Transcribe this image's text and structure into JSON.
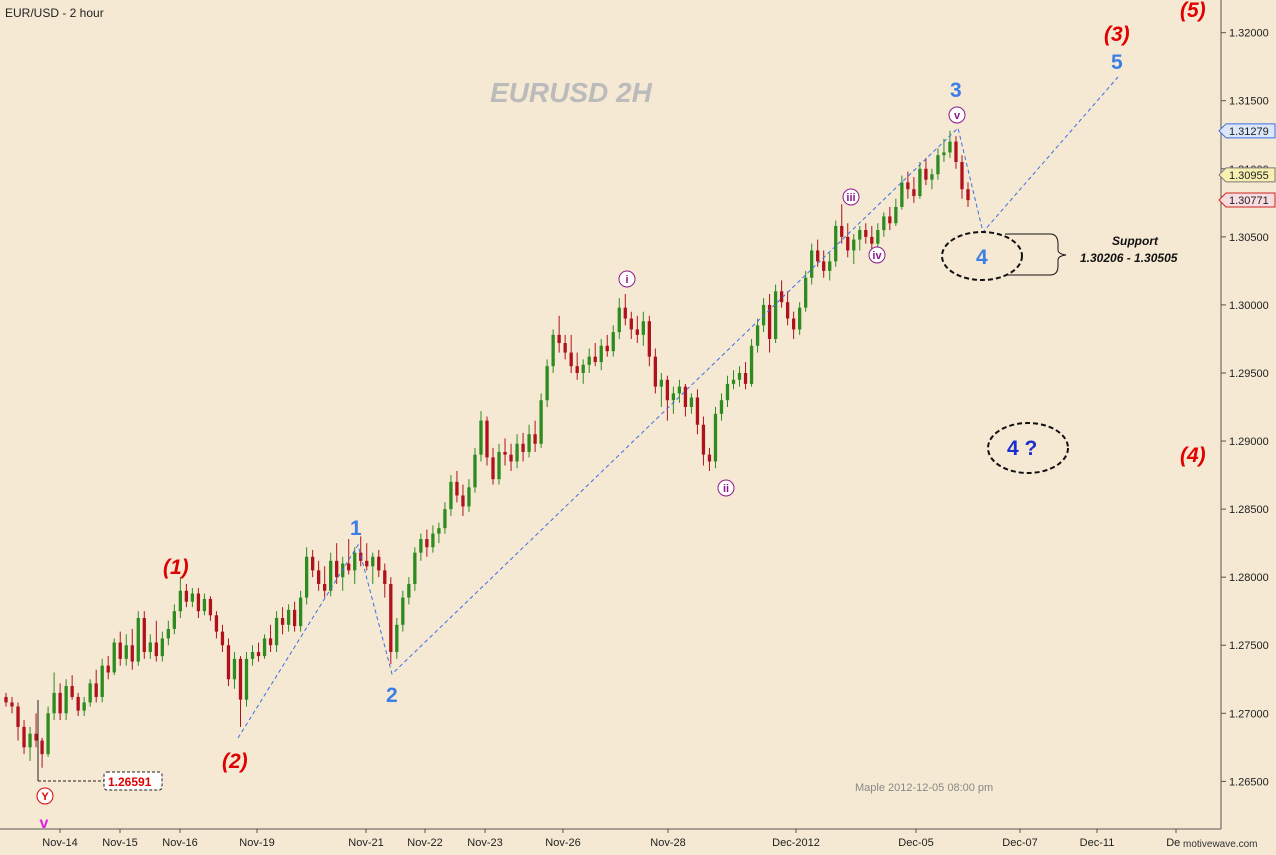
{
  "title": "EUR/USD - 2 hour",
  "watermark": "EURUSD  2H",
  "footer": "Maple  2012-12-05  08:00 pm",
  "signature": "motivewave.com",
  "colors": {
    "background": "#f5e9d3",
    "up_candle": "#2e8b1f",
    "down_candle": "#b0121b",
    "wave_red": "#e00000",
    "wave_blue": "#3d7ee6",
    "wave_purple": "#8b1a8b",
    "trendline": "#3d6fe6"
  },
  "chart_data": {
    "type": "candlestick",
    "ylim": [
      1.2615,
      1.3224
    ],
    "y_ticks": [
      "1.32000",
      "1.31500",
      "1.31000",
      "1.30500",
      "1.30000",
      "1.29500",
      "1.29000",
      "1.28500",
      "1.28000",
      "1.27500",
      "1.27000",
      "1.26500"
    ],
    "x_ticks": [
      "Nov-14",
      "Nov-15",
      "Nov-16",
      "Nov-19",
      "Nov-21",
      "Nov-22",
      "Nov-23",
      "Nov-26",
      "Nov-28",
      "Dec-2012",
      "Dec-05",
      "Dec-07",
      "Dec-11",
      "Dec"
    ],
    "price_tags": [
      {
        "label": "1.31279",
        "value": 1.31279,
        "style": "blue"
      },
      {
        "label": "1.30955",
        "value": 1.30955,
        "style": "yellow"
      },
      {
        "label": "1.30771",
        "value": 1.30771,
        "style": "red"
      }
    ],
    "low_marker": {
      "label": "1.26591",
      "value": 1.26591
    },
    "candles": [
      [
        1.2712,
        1.2715,
        1.2705,
        1.2708
      ],
      [
        1.2708,
        1.2712,
        1.27,
        1.2705
      ],
      [
        1.2705,
        1.2708,
        1.268,
        1.269
      ],
      [
        1.269,
        1.2695,
        1.267,
        1.2675
      ],
      [
        1.2675,
        1.269,
        1.2665,
        1.2685
      ],
      [
        1.2685,
        1.27,
        1.2675,
        1.268
      ],
      [
        1.268,
        1.2682,
        1.266,
        1.267
      ],
      [
        1.267,
        1.2705,
        1.2668,
        1.27
      ],
      [
        1.27,
        1.273,
        1.2695,
        1.2715
      ],
      [
        1.2715,
        1.2722,
        1.2695,
        1.27
      ],
      [
        1.27,
        1.2725,
        1.2695,
        1.272
      ],
      [
        1.272,
        1.2728,
        1.271,
        1.2712
      ],
      [
        1.2712,
        1.2715,
        1.2698,
        1.2702
      ],
      [
        1.2702,
        1.2712,
        1.2698,
        1.2708
      ],
      [
        1.2708,
        1.2725,
        1.2705,
        1.2722
      ],
      [
        1.2722,
        1.2732,
        1.2708,
        1.2712
      ],
      [
        1.2712,
        1.274,
        1.2708,
        1.2735
      ],
      [
        1.2735,
        1.2742,
        1.2725,
        1.273
      ],
      [
        1.273,
        1.2755,
        1.2728,
        1.2752
      ],
      [
        1.2752,
        1.276,
        1.2735,
        1.274
      ],
      [
        1.274,
        1.2758,
        1.2735,
        1.275
      ],
      [
        1.275,
        1.2762,
        1.2732,
        1.2738
      ],
      [
        1.2738,
        1.2775,
        1.2735,
        1.277
      ],
      [
        1.277,
        1.2775,
        1.274,
        1.2745
      ],
      [
        1.2745,
        1.2758,
        1.274,
        1.2752
      ],
      [
        1.2752,
        1.2768,
        1.2738,
        1.2742
      ],
      [
        1.2742,
        1.276,
        1.2738,
        1.2755
      ],
      [
        1.2755,
        1.2768,
        1.275,
        1.2762
      ],
      [
        1.2762,
        1.278,
        1.2758,
        1.2775
      ],
      [
        1.2775,
        1.28,
        1.277,
        1.279
      ],
      [
        1.279,
        1.2795,
        1.2778,
        1.2782
      ],
      [
        1.2782,
        1.2792,
        1.2778,
        1.2788
      ],
      [
        1.2788,
        1.2792,
        1.277,
        1.2775
      ],
      [
        1.2775,
        1.2788,
        1.2772,
        1.2784
      ],
      [
        1.2784,
        1.2786,
        1.2768,
        1.2772
      ],
      [
        1.2772,
        1.2775,
        1.2755,
        1.276
      ],
      [
        1.276,
        1.2765,
        1.2745,
        1.275
      ],
      [
        1.275,
        1.2755,
        1.272,
        1.2725
      ],
      [
        1.2725,
        1.2745,
        1.2718,
        1.274
      ],
      [
        1.274,
        1.2742,
        1.269,
        1.271
      ],
      [
        1.271,
        1.2745,
        1.2705,
        1.274
      ],
      [
        1.274,
        1.275,
        1.2735,
        1.2745
      ],
      [
        1.2745,
        1.2752,
        1.2738,
        1.2742
      ],
      [
        1.2742,
        1.2758,
        1.274,
        1.2755
      ],
      [
        1.2755,
        1.2765,
        1.2745,
        1.275
      ],
      [
        1.275,
        1.2775,
        1.2745,
        1.277
      ],
      [
        1.277,
        1.2778,
        1.2758,
        1.2765
      ],
      [
        1.2765,
        1.278,
        1.276,
        1.2776
      ],
      [
        1.2776,
        1.2782,
        1.276,
        1.2764
      ],
      [
        1.2764,
        1.279,
        1.276,
        1.2785
      ],
      [
        1.2785,
        1.2822,
        1.278,
        1.2815
      ],
      [
        1.2815,
        1.282,
        1.28,
        1.2805
      ],
      [
        1.2805,
        1.2812,
        1.279,
        1.2795
      ],
      [
        1.2795,
        1.2808,
        1.2785,
        1.279
      ],
      [
        1.279,
        1.2818,
        1.2786,
        1.2812
      ],
      [
        1.2812,
        1.2825,
        1.2795,
        1.28
      ],
      [
        1.28,
        1.2815,
        1.279,
        1.281
      ],
      [
        1.281,
        1.2828,
        1.2802,
        1.2805
      ],
      [
        1.2805,
        1.2822,
        1.2795,
        1.2818
      ],
      [
        1.2818,
        1.283,
        1.2808,
        1.2812
      ],
      [
        1.2812,
        1.2825,
        1.2805,
        1.2808
      ],
      [
        1.2808,
        1.2818,
        1.2795,
        1.2815
      ],
      [
        1.2815,
        1.282,
        1.28,
        1.2805
      ],
      [
        1.2805,
        1.281,
        1.2785,
        1.2795
      ],
      [
        1.2795,
        1.28,
        1.2736,
        1.2745
      ],
      [
        1.2745,
        1.277,
        1.274,
        1.2765
      ],
      [
        1.2765,
        1.279,
        1.276,
        1.2785
      ],
      [
        1.2785,
        1.28,
        1.278,
        1.2795
      ],
      [
        1.2795,
        1.2822,
        1.279,
        1.2818
      ],
      [
        1.2818,
        1.2832,
        1.2812,
        1.2828
      ],
      [
        1.2828,
        1.2835,
        1.2815,
        1.2822
      ],
      [
        1.2822,
        1.2838,
        1.2818,
        1.2832
      ],
      [
        1.2832,
        1.284,
        1.2825,
        1.2836
      ],
      [
        1.2836,
        1.2855,
        1.2832,
        1.285
      ],
      [
        1.285,
        1.2875,
        1.2845,
        1.287
      ],
      [
        1.287,
        1.2878,
        1.2855,
        1.286
      ],
      [
        1.286,
        1.2868,
        1.2845,
        1.2852
      ],
      [
        1.2852,
        1.2872,
        1.2848,
        1.2866
      ],
      [
        1.2866,
        1.2895,
        1.2862,
        1.289
      ],
      [
        1.289,
        1.2922,
        1.2885,
        1.2915
      ],
      [
        1.2915,
        1.2918,
        1.2882,
        1.2888
      ],
      [
        1.2888,
        1.2895,
        1.2868,
        1.2872
      ],
      [
        1.2872,
        1.2898,
        1.2868,
        1.2892
      ],
      [
        1.2892,
        1.2902,
        1.2882,
        1.289
      ],
      [
        1.289,
        1.2898,
        1.2878,
        1.2885
      ],
      [
        1.2885,
        1.2905,
        1.288,
        1.2898
      ],
      [
        1.2898,
        1.2906,
        1.2885,
        1.2892
      ],
      [
        1.2892,
        1.2912,
        1.2888,
        1.2905
      ],
      [
        1.2905,
        1.2915,
        1.2892,
        1.2898
      ],
      [
        1.2898,
        1.2935,
        1.2895,
        1.293
      ],
      [
        1.293,
        1.296,
        1.2925,
        1.2955
      ],
      [
        1.2955,
        1.2982,
        1.295,
        1.2978
      ],
      [
        1.2978,
        1.2992,
        1.2965,
        1.2972
      ],
      [
        1.2972,
        1.2978,
        1.296,
        1.2965
      ],
      [
        1.2965,
        1.2978,
        1.295,
        1.2955
      ],
      [
        1.2955,
        1.2965,
        1.2945,
        1.295
      ],
      [
        1.295,
        1.296,
        1.2942,
        1.2956
      ],
      [
        1.2956,
        1.2968,
        1.295,
        1.2962
      ],
      [
        1.2962,
        1.2972,
        1.2955,
        1.2958
      ],
      [
        1.2958,
        1.2975,
        1.2952,
        1.297
      ],
      [
        1.297,
        1.2978,
        1.2962,
        1.2966
      ],
      [
        1.2966,
        1.2985,
        1.2962,
        1.298
      ],
      [
        1.298,
        1.3005,
        1.2975,
        1.2998
      ],
      [
        1.2998,
        1.3008,
        1.2985,
        1.299
      ],
      [
        1.299,
        1.2995,
        1.2975,
        1.2982
      ],
      [
        1.2982,
        1.2992,
        1.2972,
        1.2978
      ],
      [
        1.2978,
        1.2995,
        1.297,
        1.2988
      ],
      [
        1.2988,
        1.2992,
        1.2955,
        1.2962
      ],
      [
        1.2962,
        1.2968,
        1.2935,
        1.294
      ],
      [
        1.294,
        1.295,
        1.2925,
        1.2945
      ],
      [
        1.2945,
        1.2948,
        1.2915,
        1.293
      ],
      [
        1.293,
        1.294,
        1.292,
        1.2935
      ],
      [
        1.2935,
        1.2945,
        1.2928,
        1.294
      ],
      [
        1.294,
        1.2942,
        1.2918,
        1.2925
      ],
      [
        1.2925,
        1.2935,
        1.292,
        1.2932
      ],
      [
        1.2932,
        1.2938,
        1.2905,
        1.2912
      ],
      [
        1.2912,
        1.2918,
        1.2882,
        1.289
      ],
      [
        1.289,
        1.2895,
        1.2878,
        1.2885
      ],
      [
        1.2885,
        1.2925,
        1.288,
        1.292
      ],
      [
        1.292,
        1.2935,
        1.2915,
        1.293
      ],
      [
        1.293,
        1.2948,
        1.2925,
        1.2942
      ],
      [
        1.2942,
        1.2952,
        1.2938,
        1.2945
      ],
      [
        1.2945,
        1.2955,
        1.294,
        1.295
      ],
      [
        1.295,
        1.2958,
        1.2938,
        1.2942
      ],
      [
        1.2942,
        1.2975,
        1.294,
        1.297
      ],
      [
        1.297,
        1.299,
        1.2965,
        1.2985
      ],
      [
        1.2985,
        1.3005,
        1.298,
        1.3
      ],
      [
        1.3,
        1.3008,
        1.2965,
        1.2975
      ],
      [
        1.2975,
        1.3015,
        1.2972,
        1.301
      ],
      [
        1.301,
        1.3018,
        1.2998,
        1.3002
      ],
      [
        1.3002,
        1.301,
        1.2985,
        1.299
      ],
      [
        1.299,
        1.2995,
        1.2975,
        1.2982
      ],
      [
        1.2982,
        1.3002,
        1.2978,
        1.2998
      ],
      [
        1.2998,
        1.3025,
        1.2995,
        1.302
      ],
      [
        1.302,
        1.3045,
        1.3015,
        1.304
      ],
      [
        1.304,
        1.3048,
        1.3028,
        1.3032
      ],
      [
        1.3032,
        1.304,
        1.302,
        1.3025
      ],
      [
        1.3025,
        1.3038,
        1.3018,
        1.3032
      ],
      [
        1.3032,
        1.3062,
        1.3028,
        1.3058
      ],
      [
        1.3058,
        1.3074,
        1.3045,
        1.305
      ],
      [
        1.305,
        1.306,
        1.3035,
        1.304
      ],
      [
        1.304,
        1.3052,
        1.303,
        1.3048
      ],
      [
        1.3048,
        1.3058,
        1.304,
        1.3055
      ],
      [
        1.3055,
        1.306,
        1.3045,
        1.305
      ],
      [
        1.305,
        1.3058,
        1.3038,
        1.3045
      ],
      [
        1.3045,
        1.306,
        1.3042,
        1.3055
      ],
      [
        1.3055,
        1.3068,
        1.305,
        1.3065
      ],
      [
        1.3065,
        1.3072,
        1.3055,
        1.306
      ],
      [
        1.306,
        1.3078,
        1.3058,
        1.3072
      ],
      [
        1.3072,
        1.3095,
        1.307,
        1.309
      ],
      [
        1.309,
        1.3098,
        1.3078,
        1.3085
      ],
      [
        1.3085,
        1.3094,
        1.3075,
        1.308
      ],
      [
        1.308,
        1.3105,
        1.3078,
        1.31
      ],
      [
        1.31,
        1.3108,
        1.3088,
        1.3092
      ],
      [
        1.3092,
        1.31,
        1.3085,
        1.3096
      ],
      [
        1.3096,
        1.3115,
        1.3092,
        1.311
      ],
      [
        1.311,
        1.3122,
        1.3105,
        1.3112
      ],
      [
        1.3112,
        1.3128,
        1.3108,
        1.312
      ],
      [
        1.312,
        1.3124,
        1.31,
        1.3105
      ],
      [
        1.3105,
        1.311,
        1.3078,
        1.3085
      ],
      [
        1.3085,
        1.309,
        1.3072,
        1.3077
      ]
    ]
  },
  "annotations": {
    "red_labels": [
      "(1)",
      "(2)",
      "(3)",
      "(4)",
      "(5)"
    ],
    "blue_labels": [
      "1",
      "2",
      "3",
      "4",
      "5"
    ],
    "purple_labels": [
      "i",
      "ii",
      "iii",
      "iv",
      "v"
    ],
    "y_marker": "Y",
    "v_marker": "v",
    "four_question": "4 ?",
    "support_title": "Support",
    "support_range": "1.30206 - 1.30505"
  }
}
